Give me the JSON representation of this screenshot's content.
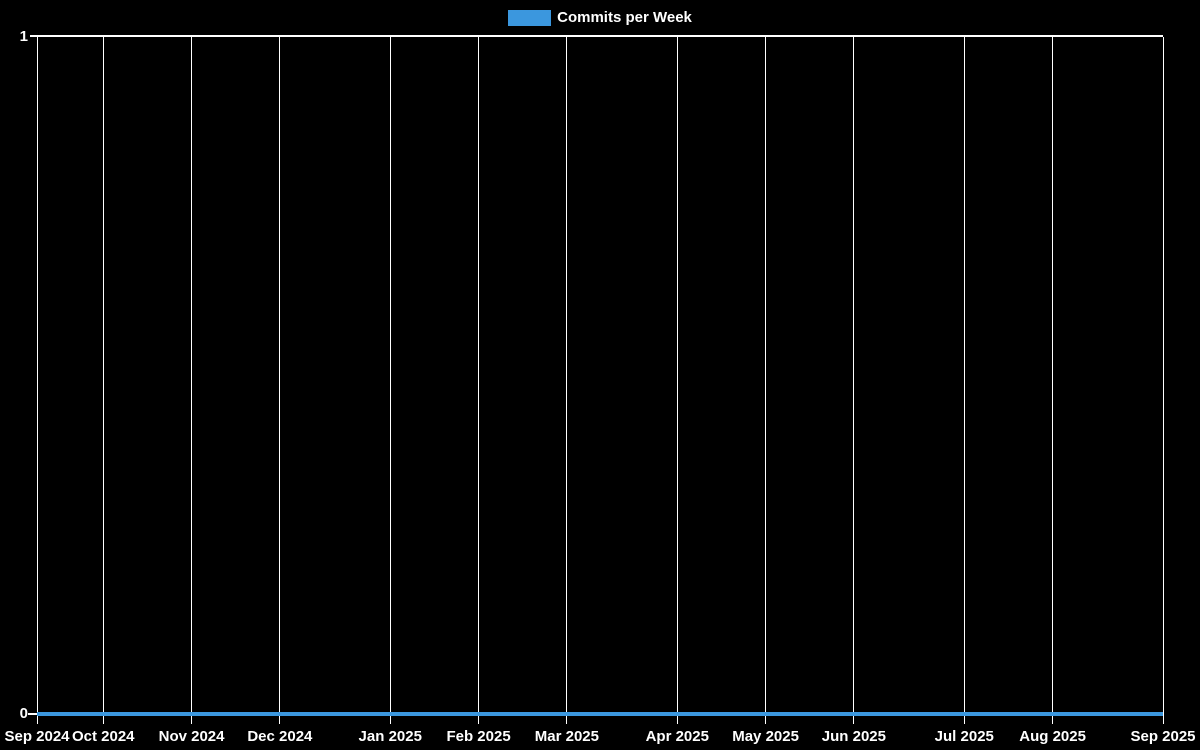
{
  "legend": {
    "label": "Commits per Week",
    "color": "#3b97de"
  },
  "y_axis": {
    "max_label": "1",
    "min_label": "0"
  },
  "chart_data": {
    "type": "line",
    "title": "Commits per Week",
    "legend_position": "top",
    "background": "#000000",
    "grid": "vertical month gridlines, white on black, no horizontal gridlines",
    "ylim": [
      0,
      1
    ],
    "y_tick_labels": [
      "0",
      "1"
    ],
    "x_range_weeks": 51,
    "x_ticks": [
      {
        "label": "Sep 2024",
        "week": 0
      },
      {
        "label": "Oct 2024",
        "week": 3
      },
      {
        "label": "Nov 2024",
        "week": 7
      },
      {
        "label": "Dec 2024",
        "week": 11
      },
      {
        "label": "Jan 2025",
        "week": 16
      },
      {
        "label": "Feb 2025",
        "week": 20
      },
      {
        "label": "Mar 2025",
        "week": 24
      },
      {
        "label": "Apr 2025",
        "week": 29
      },
      {
        "label": "May 2025",
        "week": 33
      },
      {
        "label": "Jun 2025",
        "week": 37
      },
      {
        "label": "Jul 2025",
        "week": 42
      },
      {
        "label": "Aug 2025",
        "week": 46
      },
      {
        "label": "Sep 2025",
        "week": 51
      }
    ],
    "series": [
      {
        "name": "Commits per Week",
        "color": "#3b97de",
        "line_width": 4,
        "values": [
          0,
          0,
          0,
          0,
          0,
          0,
          0,
          0,
          0,
          0,
          0,
          0,
          0,
          0,
          0,
          0,
          0,
          0,
          0,
          0,
          0,
          0,
          0,
          0,
          0,
          0,
          0,
          0,
          0,
          0,
          0,
          0,
          0,
          0,
          0,
          0,
          0,
          0,
          0,
          0,
          0,
          0,
          0,
          0,
          0,
          0,
          0,
          0,
          0,
          0,
          0,
          0
        ]
      }
    ]
  }
}
